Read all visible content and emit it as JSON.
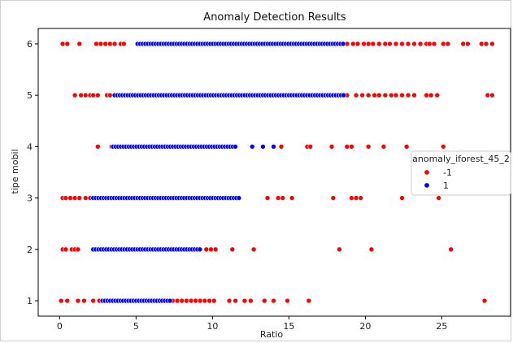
{
  "chart_data": {
    "type": "scatter",
    "title": "Anomaly Detection Results",
    "xlabel": "Ratio",
    "ylabel": "tipe mobil",
    "xlim": [
      -1.4,
      29.5
    ],
    "ylim": [
      0.7,
      6.3
    ],
    "xticks": [
      0,
      5,
      10,
      15,
      20,
      25
    ],
    "xtick_labels": [
      "0",
      "5",
      "10",
      "15",
      "20",
      "25"
    ],
    "yticks": [
      1,
      2,
      3,
      4,
      5,
      6
    ],
    "ytick_labels": [
      "1",
      "2",
      "3",
      "4",
      "5",
      "6"
    ],
    "grid": false,
    "legend": {
      "title": "anomaly_iforest_45_2",
      "placement": "right",
      "entries": [
        {
          "label": "-1",
          "color": "#ff0000"
        },
        {
          "label": "1",
          "color": "#0000ff"
        }
      ]
    },
    "series": [
      {
        "name": "-1",
        "color": "#ff0000",
        "points": [
          {
            "y": 6,
            "x": [
              0.2,
              0.5,
              1.3,
              2.4,
              2.7,
              3.0,
              3.3,
              3.6,
              4.0,
              4.2,
              18.8,
              19.2,
              19.5,
              19.9,
              20.2,
              20.5,
              20.9,
              21.3,
              21.6,
              22.0,
              22.4,
              22.8,
              23.2,
              23.6,
              24.0,
              24.2,
              24.5,
              25.1,
              25.4,
              26.4,
              26.7,
              27.6,
              27.9,
              28.3
            ]
          },
          {
            "y": 5,
            "x": [
              1.0,
              1.4,
              1.7,
              2.0,
              2.2,
              2.5,
              3.1,
              3.3,
              18.8,
              19.4,
              19.8,
              20.2,
              20.6,
              20.9,
              21.3,
              21.7,
              22.0,
              22.4,
              22.8,
              23.2,
              24.0,
              24.3,
              24.7,
              28.0,
              28.3
            ]
          },
          {
            "y": 4,
            "x": [
              2.5,
              3.4,
              14.5,
              16.2,
              16.4,
              17.8,
              18.8,
              19.1,
              20.2,
              21.2,
              22.7,
              25.1
            ]
          },
          {
            "y": 3,
            "x": [
              0.2,
              0.4,
              0.7,
              1.0,
              1.3,
              1.7,
              2.0,
              13.6,
              14.3,
              14.6,
              15.2,
              17.9,
              19.1,
              19.4,
              19.7,
              22.4,
              24.8
            ]
          },
          {
            "y": 2,
            "x": [
              0.2,
              0.4,
              0.8,
              1.0,
              1.2,
              9.6,
              9.9,
              10.2,
              11.3,
              12.7,
              18.3,
              20.4,
              25.6
            ]
          },
          {
            "y": 1,
            "x": [
              0.1,
              0.5,
              1.2,
              1.6,
              2.2,
              2.6,
              7.4,
              7.7,
              8.0,
              8.3,
              8.6,
              8.9,
              9.2,
              9.5,
              9.8,
              10.1,
              11.1,
              11.5,
              12.1,
              12.5,
              13.4,
              14.0,
              14.9,
              16.3,
              27.8
            ]
          }
        ]
      },
      {
        "name": "1",
        "color": "#0000ff",
        "points": [
          {
            "y": 6,
            "ranges": [
              [
                5.1,
                18.6
              ]
            ]
          },
          {
            "y": 5,
            "ranges": [
              [
                3.6,
                18.6
              ]
            ]
          },
          {
            "y": 4,
            "ranges": [
              [
                3.5,
                11.6
              ]
            ],
            "x": [
              12.6,
              13.3,
              14.0
            ]
          },
          {
            "y": 3,
            "ranges": [
              [
                2.2,
                11.9
              ]
            ]
          },
          {
            "y": 2,
            "ranges": [
              [
                2.2,
                9.2
              ]
            ]
          },
          {
            "y": 1,
            "ranges": [
              [
                2.8,
                7.3
              ]
            ]
          }
        ]
      }
    ]
  }
}
